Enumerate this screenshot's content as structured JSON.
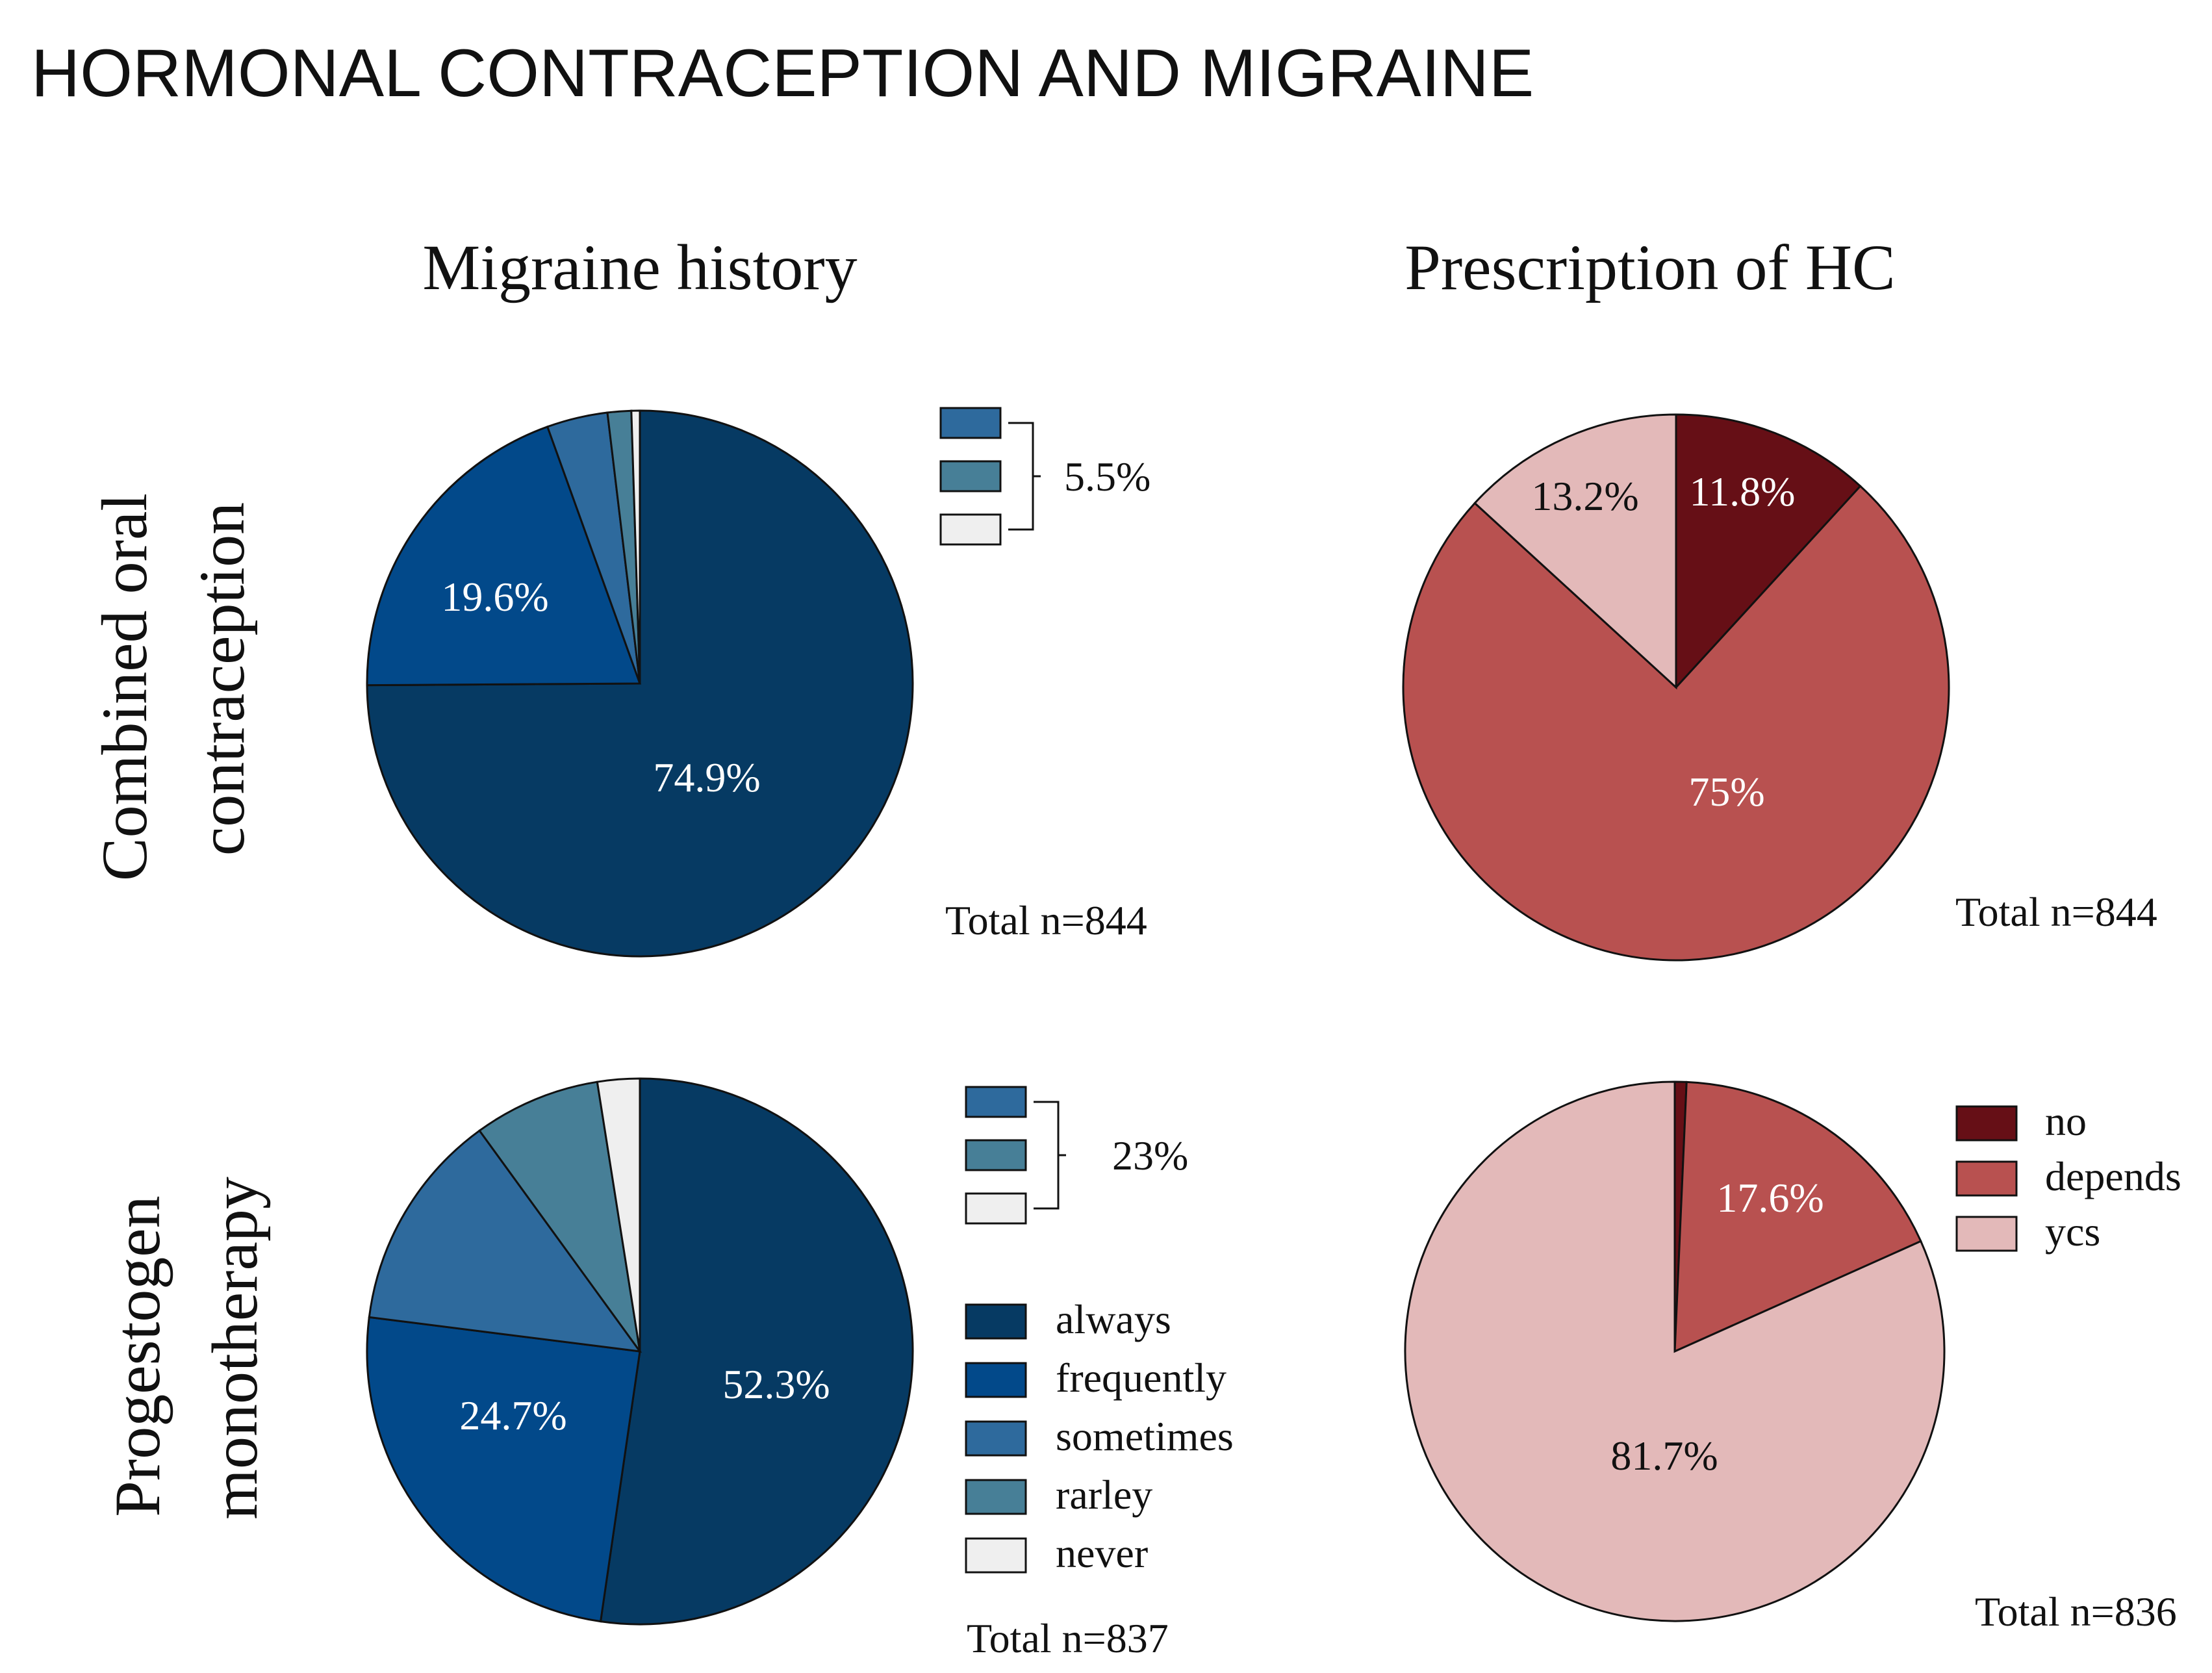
{
  "figure_title": "HORMONAL CONTRACEPTION AND MIGRAINE",
  "columns": [
    "Migraine history",
    "Prescription of HC"
  ],
  "rows": [
    "Combined oral contraception",
    "Progestogen monotherapy"
  ],
  "legends": {
    "history": {
      "items": [
        {
          "label": "always",
          "color": "#063a63"
        },
        {
          "label": "frequently",
          "color": "#02498a"
        },
        {
          "label": "sometimes",
          "color": "#2e6a9d"
        },
        {
          "label": "rarley",
          "color": "#477f97"
        },
        {
          "label": "never",
          "color": "#efefef"
        }
      ]
    },
    "prescription": {
      "items": [
        {
          "label": "no",
          "color": "#660f16"
        },
        {
          "label": "depends",
          "color": "#b85150"
        },
        {
          "label": "ycs",
          "color": "#e3b9b9"
        }
      ]
    }
  },
  "chart_data": [
    {
      "type": "pie",
      "title": "Migraine history",
      "row": "Combined oral contraception",
      "total": "Total n=844",
      "bracket_label": "5.5%",
      "slices": [
        {
          "name": "always",
          "value": 74.9,
          "label": "74.9%"
        },
        {
          "name": "frequently",
          "value": 19.6,
          "label": "19.6%"
        },
        {
          "name": "sometimes",
          "value": 3.6,
          "label": ""
        },
        {
          "name": "rarley",
          "value": 1.4,
          "label": ""
        },
        {
          "name": "never",
          "value": 0.5,
          "label": ""
        }
      ]
    },
    {
      "type": "pie",
      "title": "Prescription of HC",
      "row": "Combined oral contraception",
      "total": "Total n=844",
      "slices": [
        {
          "name": "no",
          "value": 11.8,
          "label": "11.8%"
        },
        {
          "name": "depends",
          "value": 75,
          "label": "75%"
        },
        {
          "name": "ycs",
          "value": 13.2,
          "label": "13.2%"
        }
      ]
    },
    {
      "type": "pie",
      "title": "Migraine history",
      "row": "Progestogen monotherapy",
      "total": "Total n=837",
      "bracket_label": "23%",
      "slices": [
        {
          "name": "always",
          "value": 52.3,
          "label": "52.3%"
        },
        {
          "name": "frequently",
          "value": 24.7,
          "label": "24.7%"
        },
        {
          "name": "sometimes",
          "value": 13,
          "label": ""
        },
        {
          "name": "rarley",
          "value": 7.5,
          "label": ""
        },
        {
          "name": "never",
          "value": 2.5,
          "label": ""
        }
      ]
    },
    {
      "type": "pie",
      "title": "Prescription of HC",
      "row": "Progestogen monotherapy",
      "total": "Total n=836",
      "slices": [
        {
          "name": "no",
          "value": 0.7,
          "label": ""
        },
        {
          "name": "depends",
          "value": 17.6,
          "label": "17.6%"
        },
        {
          "name": "ycs",
          "value": 81.7,
          "label": "81.7%"
        }
      ]
    }
  ]
}
